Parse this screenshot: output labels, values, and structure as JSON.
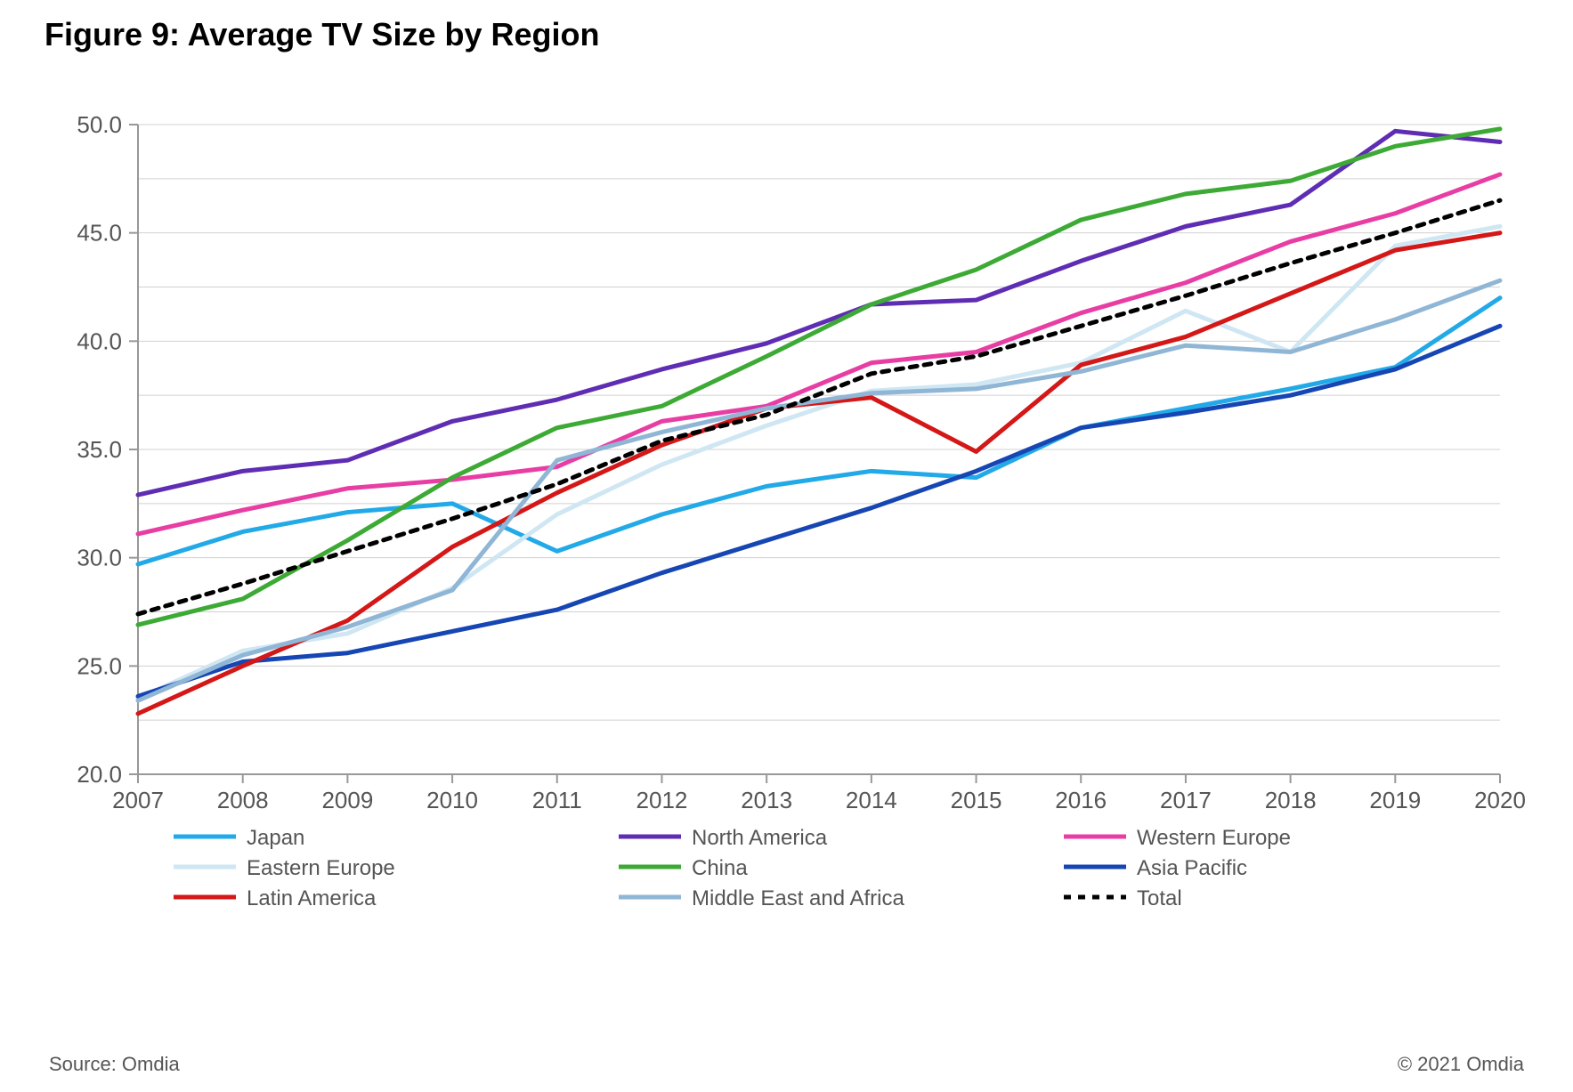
{
  "title": "Figure 9: Average TV Size by Region",
  "source": "Source: Omdia",
  "copyright": "© 2021 Omdia",
  "chart": {
    "type": "line",
    "background_color": "#ffffff",
    "axis_color": "#989898",
    "axis_width": 2,
    "gridline_color": "#d0d0d0",
    "gridline_width": 1,
    "tick_label_fontsize": 26,
    "tick_label_color": "#555555",
    "legend_fontsize": 24,
    "legend_text_color": "#555555",
    "line_width": 5,
    "marker_radius": 0,
    "x": {
      "categories": [
        "2007",
        "2008",
        "2009",
        "2010",
        "2011",
        "2012",
        "2013",
        "2014",
        "2015",
        "2016",
        "2017",
        "2018",
        "2019",
        "2020"
      ]
    },
    "y": {
      "min": 20.0,
      "max": 50.0,
      "tick_step": 5.0,
      "ticks": [
        "20.0",
        "25.0",
        "30.0",
        "35.0",
        "40.0",
        "45.0",
        "50.0"
      ]
    },
    "series": [
      {
        "name": "Japan",
        "color": "#22a9e8",
        "dash": null,
        "values": [
          29.7,
          31.2,
          32.1,
          32.5,
          30.3,
          32.0,
          33.3,
          34.0,
          33.7,
          36.0,
          36.9,
          37.8,
          38.8,
          42.0
        ]
      },
      {
        "name": "North America",
        "color": "#5f2db3",
        "dash": null,
        "values": [
          32.9,
          34.0,
          34.5,
          36.3,
          37.3,
          38.7,
          39.9,
          41.7,
          41.9,
          43.7,
          45.3,
          46.3,
          49.7,
          49.2
        ]
      },
      {
        "name": "Western Europe",
        "color": "#e83ea4",
        "dash": null,
        "values": [
          31.1,
          32.2,
          33.2,
          33.6,
          34.2,
          36.3,
          37.0,
          39.0,
          39.5,
          41.3,
          42.7,
          44.6,
          45.9,
          47.7
        ]
      },
      {
        "name": "Eastern Europe",
        "color": "#cfe6f3",
        "dash": null,
        "values": [
          23.5,
          25.7,
          26.5,
          28.6,
          32.0,
          34.3,
          36.1,
          37.7,
          38.0,
          39.0,
          41.4,
          39.5,
          44.4,
          45.3
        ]
      },
      {
        "name": "China",
        "color": "#3daa35",
        "dash": null,
        "values": [
          26.9,
          28.1,
          30.8,
          33.7,
          36.0,
          37.0,
          39.3,
          41.7,
          43.3,
          45.6,
          46.8,
          47.4,
          49.0,
          49.8
        ]
      },
      {
        "name": "Asia Pacific",
        "color": "#1646b3",
        "dash": null,
        "values": [
          23.6,
          25.2,
          25.6,
          26.6,
          27.6,
          29.3,
          30.8,
          32.3,
          34.0,
          36.0,
          36.7,
          37.5,
          38.7,
          40.7
        ]
      },
      {
        "name": "Latin America",
        "color": "#d41717",
        "dash": null,
        "values": [
          22.8,
          25.0,
          27.1,
          30.5,
          33.0,
          35.2,
          36.9,
          37.4,
          34.9,
          38.9,
          40.2,
          42.2,
          44.2,
          45.0
        ]
      },
      {
        "name": "Middle East and Africa",
        "color": "#90b6d6",
        "dash": null,
        "values": [
          23.4,
          25.5,
          26.8,
          28.5,
          34.5,
          35.8,
          36.9,
          37.6,
          37.8,
          38.6,
          39.8,
          39.5,
          41.0,
          42.8
        ]
      },
      {
        "name": "Total",
        "color": "#000000",
        "dash": "8,8",
        "values": [
          27.4,
          28.8,
          30.3,
          31.8,
          33.4,
          35.4,
          36.6,
          38.5,
          39.3,
          40.7,
          42.1,
          43.6,
          45.0,
          46.5
        ]
      }
    ],
    "legend_layout": {
      "columns": 3,
      "order": [
        [
          "Japan",
          "North America",
          "Western Europe"
        ],
        [
          "Eastern Europe",
          "China",
          "Asia Pacific"
        ],
        [
          "Latin America",
          "Middle East and Africa",
          "Total"
        ]
      ]
    }
  }
}
